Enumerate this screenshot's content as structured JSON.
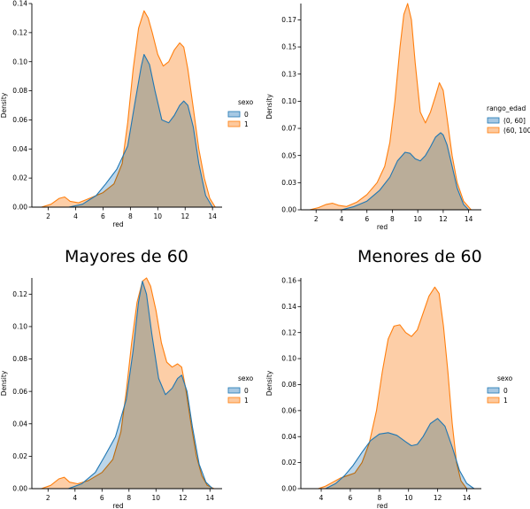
{
  "section_titles": {
    "left": "Mayores de 60",
    "right": "Menores de 60"
  },
  "colors": {
    "series_0": "#1f77b4",
    "series_1": "#ff7f0e",
    "fill_0": "#a6c8e3",
    "fill_1": "#fdc99d"
  },
  "chart_data": [
    {
      "type": "area",
      "xlabel": "red",
      "ylabel": "Density",
      "xlim": [
        0.8,
        14.7
      ],
      "ylim": [
        0,
        0.14
      ],
      "xticks": [
        2,
        4,
        6,
        8,
        10,
        12,
        14
      ],
      "yticks": [
        0.0,
        0.02,
        0.04,
        0.06,
        0.08,
        0.1,
        0.12,
        0.14
      ],
      "legend": {
        "title": "sexo",
        "placement": "center-right"
      },
      "series": [
        {
          "name": "0",
          "x": [
            3.5,
            4.5,
            5.5,
            6.2,
            7.0,
            7.8,
            8.3,
            8.8,
            9.0,
            9.4,
            9.8,
            10.3,
            10.8,
            11.2,
            11.6,
            11.9,
            12.2,
            12.6,
            13.0,
            13.5,
            14.0
          ],
          "values": [
            0,
            0.002,
            0.008,
            0.016,
            0.026,
            0.042,
            0.07,
            0.097,
            0.105,
            0.098,
            0.08,
            0.06,
            0.058,
            0.063,
            0.07,
            0.073,
            0.07,
            0.055,
            0.03,
            0.008,
            0
          ]
        },
        {
          "name": "1",
          "x": [
            1.5,
            2.2,
            2.8,
            3.2,
            3.6,
            4.2,
            5.0,
            6.0,
            6.8,
            7.4,
            7.8,
            8.2,
            8.6,
            9.0,
            9.3,
            9.6,
            10.0,
            10.4,
            10.8,
            11.2,
            11.6,
            11.9,
            12.2,
            12.6,
            13.0,
            13.4,
            13.8,
            14.2
          ],
          "values": [
            0,
            0.002,
            0.006,
            0.007,
            0.004,
            0.003,
            0.006,
            0.01,
            0.016,
            0.03,
            0.058,
            0.095,
            0.123,
            0.135,
            0.13,
            0.12,
            0.105,
            0.097,
            0.1,
            0.108,
            0.113,
            0.11,
            0.095,
            0.068,
            0.04,
            0.02,
            0.006,
            0
          ]
        }
      ]
    },
    {
      "type": "area",
      "xlabel": "red",
      "ylabel": "Density",
      "xlim": [
        0.8,
        15.0
      ],
      "ylim": [
        0,
        0.19
      ],
      "xticks": [
        2,
        4,
        6,
        8,
        10,
        12,
        14
      ],
      "yticks": [
        0.0,
        0.025,
        0.05,
        0.075,
        0.1,
        0.125,
        0.15,
        0.175
      ],
      "legend": {
        "title": "rango_edad",
        "placement": "center-right",
        "labels": [
          "(0, 60]",
          "(60, 100]"
        ]
      },
      "series": [
        {
          "name": "(0, 60]",
          "x": [
            4.0,
            5.0,
            6.0,
            7.0,
            7.8,
            8.4,
            9.0,
            9.4,
            9.8,
            10.2,
            10.6,
            11.0,
            11.4,
            11.8,
            12.0,
            12.3,
            12.7,
            13.1,
            13.6,
            14.0
          ],
          "values": [
            0,
            0.003,
            0.008,
            0.018,
            0.03,
            0.045,
            0.053,
            0.052,
            0.047,
            0.045,
            0.05,
            0.058,
            0.067,
            0.071,
            0.069,
            0.06,
            0.04,
            0.02,
            0.005,
            0
          ]
        },
        {
          "name": "(60, 100]",
          "x": [
            1.5,
            2.2,
            2.8,
            3.3,
            3.8,
            4.4,
            5.2,
            6.0,
            6.8,
            7.4,
            7.8,
            8.2,
            8.6,
            8.9,
            9.2,
            9.5,
            9.8,
            10.2,
            10.6,
            11.0,
            11.4,
            11.7,
            12.0,
            12.3,
            12.7,
            13.1,
            13.6,
            14.2
          ],
          "values": [
            0,
            0.002,
            0.005,
            0.006,
            0.004,
            0.003,
            0.007,
            0.014,
            0.025,
            0.04,
            0.062,
            0.1,
            0.15,
            0.18,
            0.19,
            0.175,
            0.135,
            0.09,
            0.08,
            0.09,
            0.105,
            0.117,
            0.11,
            0.085,
            0.05,
            0.025,
            0.008,
            0
          ]
        }
      ]
    },
    {
      "type": "area",
      "xlabel": "red",
      "ylabel": "Density",
      "xlim": [
        0.8,
        14.9
      ],
      "ylim": [
        0,
        0.13
      ],
      "xticks": [
        2,
        4,
        6,
        8,
        10,
        12,
        14
      ],
      "yticks": [
        0.0,
        0.02,
        0.04,
        0.06,
        0.08,
        0.1,
        0.12
      ],
      "legend": {
        "title": "sexo",
        "placement": "center-right"
      },
      "series": [
        {
          "name": "0",
          "x": [
            3.5,
            4.5,
            5.5,
            6.2,
            7.0,
            7.8,
            8.3,
            8.7,
            9.0,
            9.3,
            9.7,
            10.2,
            10.7,
            11.2,
            11.6,
            11.9,
            12.3,
            12.7,
            13.2,
            13.7,
            14.2
          ],
          "values": [
            0,
            0.003,
            0.01,
            0.02,
            0.032,
            0.055,
            0.085,
            0.115,
            0.128,
            0.12,
            0.095,
            0.068,
            0.058,
            0.062,
            0.068,
            0.07,
            0.06,
            0.038,
            0.015,
            0.004,
            0
          ]
        },
        {
          "name": "1",
          "x": [
            1.5,
            2.2,
            2.8,
            3.2,
            3.6,
            4.2,
            5.0,
            6.0,
            6.8,
            7.4,
            7.8,
            8.2,
            8.6,
            9.0,
            9.3,
            9.6,
            10.0,
            10.4,
            10.8,
            11.2,
            11.6,
            11.9,
            12.2,
            12.6,
            13.0,
            13.4,
            13.8,
            14.3
          ],
          "values": [
            0,
            0.002,
            0.006,
            0.007,
            0.004,
            0.003,
            0.005,
            0.01,
            0.018,
            0.035,
            0.06,
            0.09,
            0.115,
            0.128,
            0.13,
            0.125,
            0.11,
            0.09,
            0.078,
            0.075,
            0.077,
            0.075,
            0.062,
            0.04,
            0.02,
            0.008,
            0.002,
            0
          ]
        }
      ]
    },
    {
      "type": "area",
      "xlabel": "red",
      "ylabel": "Density",
      "xlim": [
        2.6,
        15.0
      ],
      "ylim": [
        0,
        0.162
      ],
      "xticks": [
        4,
        6,
        8,
        10,
        12,
        14
      ],
      "yticks": [
        0.0,
        0.02,
        0.04,
        0.06,
        0.08,
        0.1,
        0.12,
        0.14,
        0.16
      ],
      "legend": {
        "title": "sexo",
        "placement": "center-right"
      },
      "series": [
        {
          "name": "0",
          "x": [
            4.3,
            5.0,
            5.6,
            6.2,
            6.8,
            7.4,
            8.0,
            8.6,
            9.2,
            9.8,
            10.2,
            10.6,
            11.0,
            11.5,
            12.0,
            12.5,
            13.0,
            13.5,
            14.0,
            14.5
          ],
          "values": [
            0,
            0.004,
            0.01,
            0.018,
            0.028,
            0.037,
            0.042,
            0.043,
            0.041,
            0.036,
            0.033,
            0.034,
            0.04,
            0.05,
            0.054,
            0.048,
            0.032,
            0.014,
            0.004,
            0
          ]
        },
        {
          "name": "1",
          "x": [
            3.8,
            4.3,
            4.8,
            5.3,
            5.8,
            6.3,
            6.8,
            7.3,
            7.8,
            8.2,
            8.6,
            9.0,
            9.4,
            9.8,
            10.2,
            10.6,
            11.0,
            11.4,
            11.8,
            12.1,
            12.4,
            12.7,
            13.0,
            13.3,
            13.6,
            14.0
          ],
          "values": [
            0,
            0.002,
            0.005,
            0.008,
            0.01,
            0.012,
            0.02,
            0.035,
            0.06,
            0.09,
            0.115,
            0.125,
            0.126,
            0.12,
            0.117,
            0.122,
            0.135,
            0.148,
            0.155,
            0.15,
            0.125,
            0.09,
            0.05,
            0.02,
            0.006,
            0
          ]
        }
      ]
    }
  ]
}
